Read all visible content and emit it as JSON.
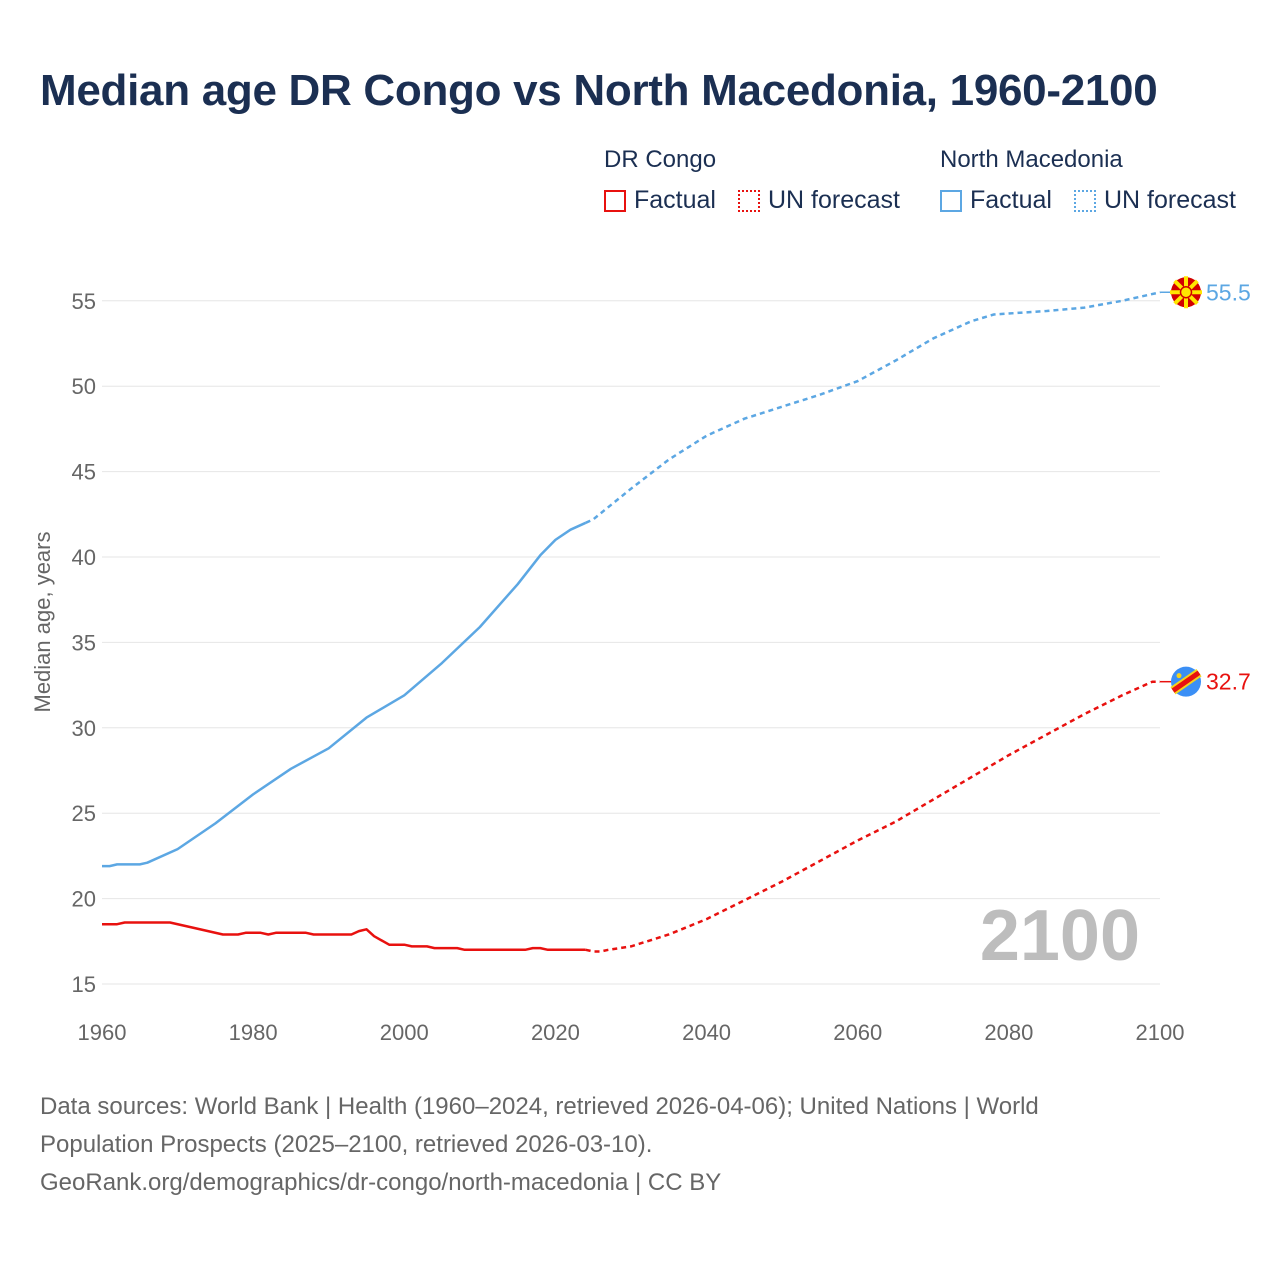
{
  "title": "Median age DR Congo vs North Macedonia, 1960-2100",
  "legend": {
    "groups": [
      {
        "name": "DR Congo",
        "factual": "Factual",
        "forecast": "UN forecast",
        "color": "#e8110f"
      },
      {
        "name": "North Macedonia",
        "factual": "Factual",
        "forecast": "UN forecast",
        "color": "#5ca7e3"
      }
    ]
  },
  "watermark_year": "2100",
  "sources": {
    "line1": "Data sources: World Bank | Health (1960–2024, retrieved 2026-04-06); United Nations | World",
    "line2": "Population Prospects (2025–2100, retrieved 2026-03-10).",
    "line3": "GeoRank.org/demographics/dr-congo/north-macedonia | CC BY"
  },
  "chart_data": {
    "type": "line",
    "title": "Median age DR Congo vs North Macedonia, 1960-2100",
    "xlabel": "",
    "ylabel": "Median age, years",
    "xlim": [
      1960,
      2100
    ],
    "ylim": [
      15,
      57
    ],
    "xticks": [
      1960,
      1980,
      2000,
      2020,
      2040,
      2060,
      2080,
      2100
    ],
    "yticks": [
      15,
      20,
      25,
      30,
      35,
      40,
      45,
      50,
      55
    ],
    "grid": true,
    "factual_range": [
      1960,
      2024
    ],
    "forecast_range": [
      2025,
      2100
    ],
    "series": [
      {
        "name": "DR Congo",
        "color": "#e8110f",
        "end_label": "32.7",
        "points": [
          [
            1960,
            18.5
          ],
          [
            1962,
            18.5
          ],
          [
            1963,
            18.6
          ],
          [
            1969,
            18.6
          ],
          [
            1972,
            18.3
          ],
          [
            1976,
            17.9
          ],
          [
            1978,
            17.9
          ],
          [
            1979,
            18.0
          ],
          [
            1981,
            18.0
          ],
          [
            1982,
            17.9
          ],
          [
            1983,
            18.0
          ],
          [
            1987,
            18.0
          ],
          [
            1988,
            17.9
          ],
          [
            1993,
            17.9
          ],
          [
            1994,
            18.1
          ],
          [
            1995,
            18.2
          ],
          [
            1996,
            17.8
          ],
          [
            1998,
            17.3
          ],
          [
            2000,
            17.3
          ],
          [
            2001,
            17.2
          ],
          [
            2003,
            17.2
          ],
          [
            2004,
            17.1
          ],
          [
            2007,
            17.1
          ],
          [
            2008,
            17.0
          ],
          [
            2016,
            17.0
          ],
          [
            2017,
            17.1
          ],
          [
            2018,
            17.1
          ],
          [
            2019,
            17.0
          ],
          [
            2024,
            17.0
          ],
          [
            2025,
            16.9
          ],
          [
            2026,
            16.9
          ],
          [
            2027,
            17.0
          ],
          [
            2030,
            17.2
          ],
          [
            2035,
            17.9
          ],
          [
            2040,
            18.8
          ],
          [
            2045,
            19.9
          ],
          [
            2050,
            21.0
          ],
          [
            2055,
            22.2
          ],
          [
            2060,
            23.4
          ],
          [
            2065,
            24.5
          ],
          [
            2070,
            25.8
          ],
          [
            2075,
            27.1
          ],
          [
            2080,
            28.4
          ],
          [
            2085,
            29.6
          ],
          [
            2090,
            30.8
          ],
          [
            2095,
            31.9
          ],
          [
            2099,
            32.7
          ],
          [
            2100,
            32.7
          ]
        ]
      },
      {
        "name": "North Macedonia",
        "color": "#5ca7e3",
        "end_label": "55.5",
        "points": [
          [
            1960,
            21.9
          ],
          [
            1961,
            21.9
          ],
          [
            1962,
            22.0
          ],
          [
            1965,
            22.0
          ],
          [
            1966,
            22.1
          ],
          [
            1970,
            22.9
          ],
          [
            1975,
            24.4
          ],
          [
            1980,
            26.1
          ],
          [
            1985,
            27.6
          ],
          [
            1990,
            28.8
          ],
          [
            1995,
            30.6
          ],
          [
            2000,
            31.9
          ],
          [
            2005,
            33.8
          ],
          [
            2010,
            35.9
          ],
          [
            2015,
            38.4
          ],
          [
            2018,
            40.1
          ],
          [
            2020,
            41.0
          ],
          [
            2022,
            41.6
          ],
          [
            2024,
            42.0
          ],
          [
            2025,
            42.2
          ],
          [
            2030,
            44.0
          ],
          [
            2035,
            45.7
          ],
          [
            2040,
            47.1
          ],
          [
            2045,
            48.1
          ],
          [
            2050,
            48.8
          ],
          [
            2055,
            49.5
          ],
          [
            2060,
            50.3
          ],
          [
            2065,
            51.5
          ],
          [
            2070,
            52.8
          ],
          [
            2075,
            53.8
          ],
          [
            2078,
            54.2
          ],
          [
            2085,
            54.4
          ],
          [
            2090,
            54.6
          ],
          [
            2095,
            55.0
          ],
          [
            2100,
            55.5
          ]
        ]
      }
    ]
  }
}
